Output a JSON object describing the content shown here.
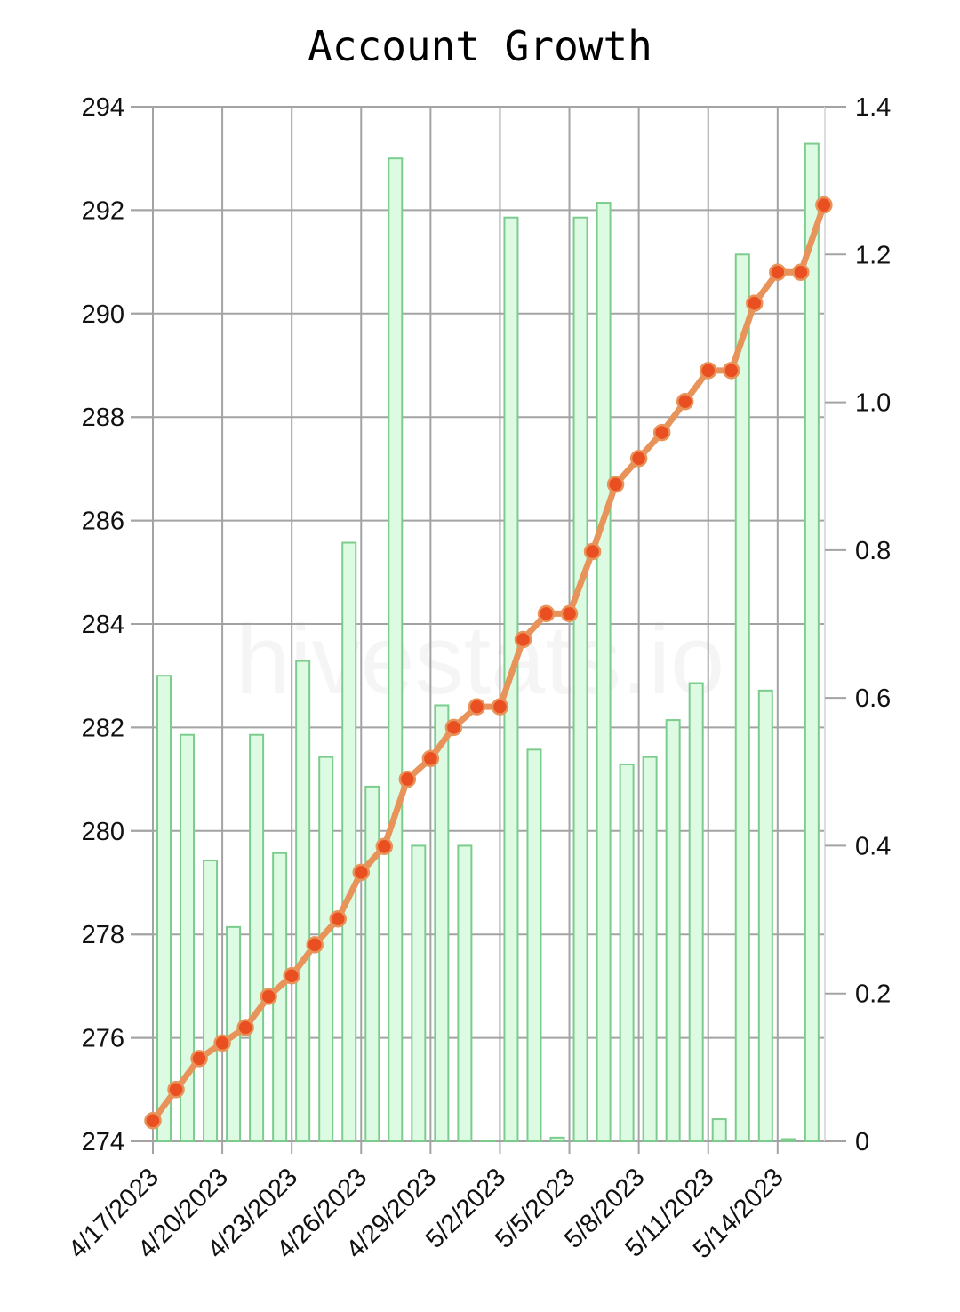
{
  "chart_data": {
    "type": "bar+line",
    "title": "Account Growth",
    "watermark": "hivestats.io",
    "x": [
      "4/17/2023",
      "4/18/2023",
      "4/19/2023",
      "4/20/2023",
      "4/21/2023",
      "4/22/2023",
      "4/23/2023",
      "4/24/2023",
      "4/25/2023",
      "4/26/2023",
      "4/27/2023",
      "4/28/2023",
      "4/29/2023",
      "4/30/2023",
      "5/1/2023",
      "5/2/2023",
      "5/3/2023",
      "5/4/2023",
      "5/5/2023",
      "5/6/2023",
      "5/7/2023",
      "5/8/2023",
      "5/9/2023",
      "5/10/2023",
      "5/11/2023",
      "5/12/2023",
      "5/13/2023",
      "5/14/2023",
      "5/15/2023",
      "5/16/2023"
    ],
    "x_tick_labels": [
      "4/17/2023",
      "4/20/2023",
      "4/23/2023",
      "4/26/2023",
      "4/29/2023",
      "5/2/2023",
      "5/5/2023",
      "5/8/2023",
      "5/11/2023",
      "5/14/2023"
    ],
    "left_axis": {
      "ylim": [
        274,
        294
      ],
      "ticks": [
        "274",
        "276",
        "278",
        "280",
        "282",
        "284",
        "286",
        "288",
        "290",
        "292",
        "294"
      ]
    },
    "right_axis": {
      "ylim": [
        0,
        1.4
      ],
      "ticks": [
        "0",
        "0.2",
        "0.4",
        "0.6",
        "0.8",
        "1.0",
        "1.2",
        "1.4"
      ]
    },
    "grid": true,
    "series": [
      {
        "kind": "line",
        "axis": "left",
        "color": "#e8935a",
        "marker_color": "#ea4f22",
        "values": [
          274.4,
          275.0,
          275.6,
          275.9,
          276.2,
          276.8,
          277.2,
          277.8,
          278.3,
          279.2,
          279.7,
          281.0,
          281.4,
          282.0,
          282.4,
          282.4,
          283.7,
          284.2,
          284.2,
          285.4,
          286.7,
          287.2,
          287.7,
          288.3,
          288.9,
          288.9,
          290.2,
          290.8,
          290.8,
          292.1
        ]
      },
      {
        "kind": "bar",
        "axis": "right",
        "color": "#ddfbe2",
        "edge_color": "#7ccc8e",
        "values": [
          0.63,
          0.55,
          0.38,
          0.29,
          0.55,
          0.39,
          0.65,
          0.52,
          0.81,
          0.48,
          1.33,
          0.4,
          0.59,
          0.4,
          0,
          1.25,
          0.53,
          0.005,
          1.25,
          1.27,
          0.51,
          0.52,
          0.57,
          0.62,
          0.03,
          1.2,
          0.61,
          0.003,
          1.35,
          0.001
        ]
      }
    ]
  }
}
